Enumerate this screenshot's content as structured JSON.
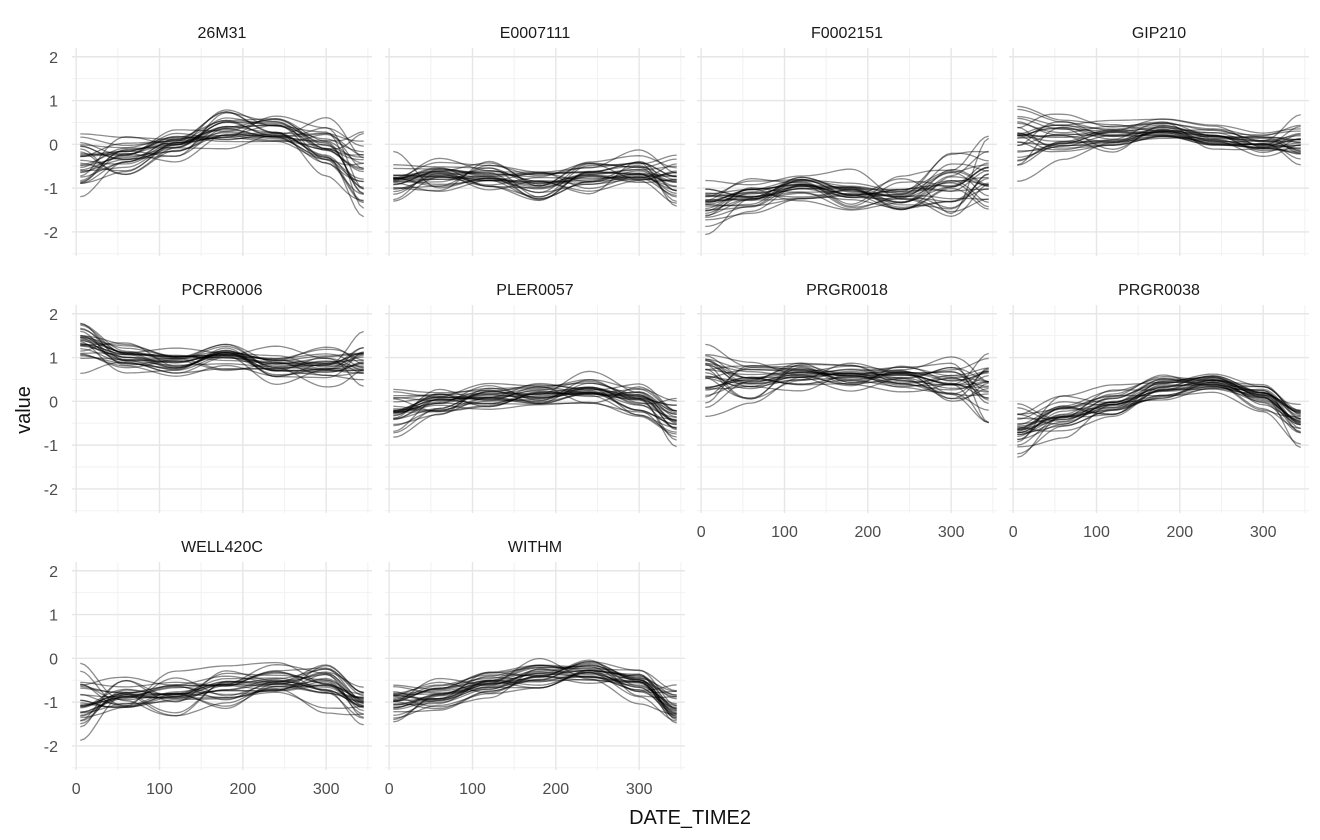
{
  "chart_data": {
    "type": "line",
    "xlabel": "DATE_TIME2",
    "ylabel": "value",
    "xlim": [
      -5,
      355
    ],
    "ylim": [
      -2.55,
      2.2
    ],
    "x_ticks": [
      0,
      100,
      200,
      300
    ],
    "y_ticks": [
      2,
      1,
      0,
      -1,
      -2
    ],
    "grid": true,
    "line_color": "#000000",
    "line_opacity": 0.45,
    "panels": [
      {
        "name": "26M31",
        "x": [
          5,
          60,
          120,
          180,
          240,
          300,
          345
        ],
        "mean": [
          -0.45,
          -0.3,
          0.0,
          0.3,
          0.35,
          -0.05,
          -0.7
        ],
        "spread": [
          0.45,
          0.3,
          0.3,
          0.3,
          0.25,
          0.35,
          0.6
        ],
        "n": 30
      },
      {
        "name": "E0007111",
        "x": [
          5,
          60,
          120,
          180,
          240,
          300,
          345
        ],
        "mean": [
          -0.8,
          -0.7,
          -0.8,
          -0.9,
          -0.75,
          -0.6,
          -0.8
        ],
        "spread": [
          0.3,
          0.25,
          0.25,
          0.25,
          0.25,
          0.25,
          0.3
        ],
        "n": 30
      },
      {
        "name": "F0002151",
        "x": [
          5,
          60,
          120,
          180,
          240,
          300,
          345
        ],
        "mean": [
          -1.35,
          -1.2,
          -0.95,
          -1.1,
          -1.2,
          -0.9,
          -0.6
        ],
        "spread": [
          0.3,
          0.25,
          0.2,
          0.25,
          0.25,
          0.4,
          0.55
        ],
        "n": 30
      },
      {
        "name": "GIP210",
        "x": [
          5,
          60,
          120,
          180,
          240,
          300,
          345
        ],
        "mean": [
          0.05,
          0.15,
          0.2,
          0.3,
          0.15,
          0.0,
          0.1
        ],
        "spread": [
          0.5,
          0.25,
          0.2,
          0.15,
          0.15,
          0.2,
          0.3
        ],
        "n": 30
      },
      {
        "name": "PCRR0006",
        "x": [
          5,
          60,
          120,
          180,
          240,
          300,
          345
        ],
        "mean": [
          1.3,
          1.0,
          0.85,
          1.0,
          0.8,
          0.85,
          0.85
        ],
        "spread": [
          0.3,
          0.2,
          0.2,
          0.2,
          0.2,
          0.2,
          0.35
        ],
        "n": 30
      },
      {
        "name": "PLER0057",
        "x": [
          5,
          60,
          120,
          180,
          240,
          300,
          345
        ],
        "mean": [
          -0.2,
          0.0,
          0.1,
          0.15,
          0.25,
          0.05,
          -0.35
        ],
        "spread": [
          0.3,
          0.25,
          0.2,
          0.2,
          0.2,
          0.25,
          0.35
        ],
        "n": 30
      },
      {
        "name": "PRGR0018",
        "x": [
          5,
          60,
          120,
          180,
          240,
          300,
          345
        ],
        "mean": [
          0.4,
          0.5,
          0.6,
          0.6,
          0.55,
          0.4,
          0.2
        ],
        "spread": [
          0.5,
          0.3,
          0.25,
          0.2,
          0.2,
          0.3,
          0.5
        ],
        "n": 30
      },
      {
        "name": "PRGR0038",
        "x": [
          5,
          60,
          120,
          180,
          240,
          300,
          345
        ],
        "mean": [
          -0.65,
          -0.3,
          0.0,
          0.3,
          0.45,
          0.1,
          -0.45
        ],
        "spread": [
          0.35,
          0.25,
          0.2,
          0.2,
          0.15,
          0.2,
          0.3
        ],
        "n": 30
      },
      {
        "name": "WELL420C",
        "x": [
          5,
          60,
          120,
          180,
          240,
          300,
          345
        ],
        "mean": [
          -1.1,
          -0.9,
          -0.75,
          -0.65,
          -0.55,
          -0.6,
          -1.0
        ],
        "spread": [
          0.6,
          0.35,
          0.25,
          0.25,
          0.2,
          0.25,
          0.3
        ],
        "n": 30
      },
      {
        "name": "WITHM",
        "x": [
          5,
          60,
          120,
          180,
          240,
          300,
          345
        ],
        "mean": [
          -0.95,
          -0.8,
          -0.6,
          -0.4,
          -0.35,
          -0.6,
          -1.15
        ],
        "spread": [
          0.25,
          0.2,
          0.2,
          0.2,
          0.2,
          0.25,
          0.3
        ],
        "n": 30
      }
    ]
  }
}
